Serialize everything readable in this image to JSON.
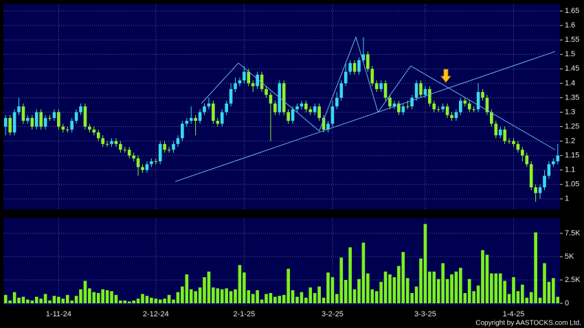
{
  "chart_data": {
    "type": "candlestick",
    "categories": [
      null,
      null,
      null,
      null,
      null,
      null,
      null,
      null,
      null,
      null,
      null,
      null,
      "1-11-24",
      null,
      null,
      null,
      null,
      null,
      null,
      null,
      null,
      null,
      null,
      null,
      null,
      null,
      null,
      null,
      null,
      null,
      null,
      null,
      null,
      null,
      "2-12-24",
      null,
      null,
      null,
      null,
      null,
      null,
      null,
      null,
      null,
      null,
      null,
      null,
      null,
      null,
      null,
      null,
      null,
      null,
      null,
      "2-1-25",
      null,
      null,
      null,
      null,
      null,
      null,
      null,
      null,
      null,
      null,
      null,
      null,
      null,
      null,
      null,
      null,
      null,
      null,
      null,
      "3-2-25",
      null,
      null,
      null,
      null,
      null,
      null,
      null,
      null,
      null,
      null,
      null,
      null,
      null,
      null,
      null,
      null,
      null,
      null,
      null,
      null,
      "3-3-25",
      null,
      null,
      null,
      null,
      null,
      null,
      null,
      null,
      null,
      null,
      null,
      null,
      null,
      null,
      null,
      null,
      null,
      null,
      null,
      "1-4-25",
      null,
      null,
      null,
      null,
      null,
      null,
      null,
      null,
      null,
      null
    ],
    "open": [
      1.25,
      1.28,
      1.23,
      1.3,
      1.32,
      1.27,
      1.28,
      1.25,
      1.3,
      1.25,
      1.28,
      1.28,
      1.3,
      1.25,
      1.24,
      1.24,
      1.27,
      1.3,
      1.32,
      1.25,
      1.24,
      1.23,
      1.21,
      1.19,
      1.19,
      1.2,
      1.19,
      1.17,
      1.17,
      1.15,
      1.14,
      1.11,
      1.1,
      1.12,
      1.13,
      1.13,
      1.19,
      1.17,
      1.17,
      1.19,
      1.21,
      1.26,
      1.27,
      1.28,
      1.27,
      1.3,
      1.32,
      1.33,
      1.27,
      1.26,
      1.3,
      1.33,
      1.38,
      1.4,
      1.41,
      1.44,
      1.4,
      1.39,
      1.43,
      1.38,
      1.36,
      1.33,
      1.3,
      1.4,
      1.3,
      1.27,
      1.31,
      1.32,
      1.33,
      1.31,
      1.3,
      1.32,
      1.28,
      1.24,
      1.26,
      1.32,
      1.35,
      1.4,
      1.44,
      1.47,
      1.44,
      1.48,
      1.5,
      1.45,
      1.4,
      1.38,
      1.4,
      1.35,
      1.32,
      1.33,
      1.3,
      1.32,
      1.32,
      1.35,
      1.4,
      1.36,
      1.38,
      1.33,
      1.31,
      1.31,
      1.32,
      1.29,
      1.28,
      1.3,
      1.34,
      1.33,
      1.31,
      1.31,
      1.37,
      1.35,
      1.3,
      1.26,
      1.22,
      1.24,
      1.2,
      1.2,
      1.19,
      1.17,
      1.15,
      1.12,
      1.04,
      1.02,
      1.04,
      1.08,
      1.12,
      1.13
    ],
    "high": [
      1.29,
      1.29,
      1.31,
      1.35,
      1.33,
      1.29,
      1.29,
      1.31,
      1.31,
      1.29,
      1.29,
      1.31,
      1.31,
      1.26,
      1.25,
      1.28,
      1.31,
      1.33,
      1.33,
      1.26,
      1.25,
      1.24,
      1.22,
      1.2,
      1.21,
      1.21,
      1.2,
      1.18,
      1.18,
      1.16,
      1.15,
      1.12,
      1.13,
      1.14,
      1.14,
      1.2,
      1.2,
      1.18,
      1.2,
      1.22,
      1.27,
      1.28,
      1.32,
      1.29,
      1.31,
      1.33,
      1.35,
      1.34,
      1.28,
      1.31,
      1.34,
      1.4,
      1.42,
      1.42,
      1.46,
      1.45,
      1.41,
      1.44,
      1.44,
      1.39,
      1.37,
      1.34,
      1.41,
      1.41,
      1.31,
      1.32,
      1.33,
      1.34,
      1.34,
      1.32,
      1.33,
      1.33,
      1.29,
      1.27,
      1.34,
      1.37,
      1.41,
      1.47,
      1.48,
      1.48,
      1.49,
      1.56,
      1.51,
      1.46,
      1.41,
      1.41,
      1.41,
      1.36,
      1.34,
      1.34,
      1.33,
      1.34,
      1.36,
      1.41,
      1.41,
      1.39,
      1.39,
      1.34,
      1.32,
      1.33,
      1.33,
      1.3,
      1.31,
      1.35,
      1.35,
      1.34,
      1.32,
      1.4,
      1.38,
      1.36,
      1.31,
      1.27,
      1.25,
      1.25,
      1.21,
      1.21,
      1.2,
      1.18,
      1.16,
      1.13,
      1.05,
      1.05,
      1.1,
      1.13,
      1.14,
      1.19
    ],
    "low": [
      1.22,
      1.22,
      1.22,
      1.29,
      1.26,
      1.26,
      1.24,
      1.24,
      1.24,
      1.24,
      1.27,
      1.27,
      1.24,
      1.23,
      1.23,
      1.23,
      1.26,
      1.29,
      1.24,
      1.23,
      1.22,
      1.2,
      1.18,
      1.18,
      1.18,
      1.18,
      1.16,
      1.16,
      1.14,
      1.13,
      1.08,
      1.09,
      1.09,
      1.11,
      1.12,
      1.12,
      1.16,
      1.16,
      1.16,
      1.18,
      1.2,
      1.25,
      1.26,
      1.22,
      1.26,
      1.29,
      1.31,
      1.26,
      1.25,
      1.25,
      1.29,
      1.32,
      1.37,
      1.39,
      1.4,
      1.39,
      1.37,
      1.38,
      1.37,
      1.35,
      1.2,
      1.29,
      1.29,
      1.29,
      1.26,
      1.26,
      1.3,
      1.31,
      1.3,
      1.29,
      1.29,
      1.27,
      1.23,
      1.23,
      1.25,
      1.31,
      1.34,
      1.39,
      1.43,
      1.43,
      1.43,
      1.47,
      1.44,
      1.39,
      1.37,
      1.37,
      1.34,
      1.31,
      1.31,
      1.29,
      1.29,
      1.31,
      1.31,
      1.34,
      1.35,
      1.35,
      1.32,
      1.3,
      1.3,
      1.3,
      1.28,
      1.27,
      1.27,
      1.29,
      1.32,
      1.3,
      1.3,
      1.3,
      1.34,
      1.29,
      1.25,
      1.21,
      1.21,
      1.19,
      1.19,
      1.18,
      1.16,
      1.13,
      1.11,
      1.03,
      0.99,
      1.0,
      1.03,
      1.07,
      1.11,
      1.12
    ],
    "close": [
      1.28,
      1.23,
      1.3,
      1.32,
      1.27,
      1.28,
      1.25,
      1.3,
      1.25,
      1.28,
      1.28,
      1.3,
      1.25,
      1.24,
      1.24,
      1.27,
      1.3,
      1.32,
      1.25,
      1.24,
      1.23,
      1.21,
      1.19,
      1.19,
      1.2,
      1.19,
      1.17,
      1.17,
      1.15,
      1.14,
      1.11,
      1.1,
      1.12,
      1.13,
      1.13,
      1.19,
      1.17,
      1.17,
      1.19,
      1.21,
      1.26,
      1.27,
      1.28,
      1.27,
      1.3,
      1.32,
      1.33,
      1.27,
      1.26,
      1.3,
      1.33,
      1.38,
      1.4,
      1.41,
      1.44,
      1.4,
      1.39,
      1.43,
      1.38,
      1.36,
      1.33,
      1.3,
      1.4,
      1.3,
      1.27,
      1.31,
      1.32,
      1.33,
      1.31,
      1.3,
      1.32,
      1.28,
      1.24,
      1.26,
      1.32,
      1.35,
      1.4,
      1.44,
      1.47,
      1.44,
      1.48,
      1.5,
      1.45,
      1.4,
      1.38,
      1.4,
      1.35,
      1.32,
      1.33,
      1.3,
      1.32,
      1.32,
      1.35,
      1.4,
      1.36,
      1.38,
      1.33,
      1.31,
      1.31,
      1.32,
      1.29,
      1.28,
      1.3,
      1.34,
      1.33,
      1.31,
      1.31,
      1.37,
      1.35,
      1.3,
      1.26,
      1.22,
      1.24,
      1.2,
      1.2,
      1.19,
      1.17,
      1.15,
      1.12,
      1.04,
      1.02,
      1.04,
      1.08,
      1.12,
      1.13,
      1.15
    ],
    "up_color": "#3ad8ec",
    "down_color": "#8ef02a",
    "ylim": [
      0.964,
      1.674
    ],
    "yticks": [
      1,
      1.05,
      1.1,
      1.15,
      1.2,
      1.25,
      1.3,
      1.35,
      1.4,
      1.45,
      1.5,
      1.55,
      1.6,
      1.65
    ],
    "grid": true,
    "trendlines": [
      {
        "color": "#6ab4f0",
        "x": [
          38.4,
          124.4
        ],
        "y": [
          1.06,
          1.51
        ]
      },
      {
        "color": "#6ab4f0",
        "x": [
          44.3,
          52.7,
          71.0,
          79.3,
          84.3,
          91.7,
          124.4
        ],
        "y": [
          1.33,
          1.47,
          1.235,
          1.56,
          1.3,
          1.46,
          1.17
        ]
      }
    ],
    "volume": {
      "type": "bar",
      "color": "#7cf01e",
      "values": [
        900,
        300,
        1200,
        600,
        700,
        400,
        300,
        700,
        500,
        1000,
        300,
        800,
        700,
        500,
        900,
        300,
        800,
        1500,
        2400,
        1600,
        1200,
        1100,
        1500,
        1400,
        1300,
        900,
        300,
        300,
        200,
        300,
        500,
        1000,
        800,
        600,
        500,
        400,
        500,
        900,
        400,
        1200,
        1800,
        3100,
        1500,
        1300,
        1700,
        2800,
        3400,
        1700,
        1600,
        1500,
        1600,
        1300,
        1500,
        4100,
        3300,
        1400,
        1000,
        1400,
        400,
        1000,
        1100,
        700,
        800,
        900,
        3700,
        1400,
        700,
        1200,
        600,
        1700,
        1100,
        1800,
        600,
        3300,
        2800,
        1000,
        4900,
        2500,
        6000,
        1500,
        2600,
        6500,
        3200,
        1500,
        1300,
        2300,
        3400,
        3100,
        2800,
        4000,
        5500,
        2700,
        1100,
        1800,
        4800,
        8500,
        3400,
        3400,
        2600,
        4300,
        2600,
        3100,
        3400,
        3800,
        1100,
        2600,
        1300,
        1900,
        5700,
        5200,
        3200,
        3200,
        3200,
        2400,
        1000,
        2800,
        1300,
        2000,
        600,
        1200,
        7600,
        600,
        4300,
        2300,
        2700,
        700
      ],
      "ylim": [
        -220,
        9120
      ],
      "yticks": [
        0,
        {
          "value": 2500,
          "label": "2.5K"
        },
        {
          "value": 5000,
          "label": "5K"
        },
        {
          "value": 7500,
          "label": "7.5K"
        }
      ]
    },
    "source": "Copyright by AASTOCKS.com Ltd."
  }
}
